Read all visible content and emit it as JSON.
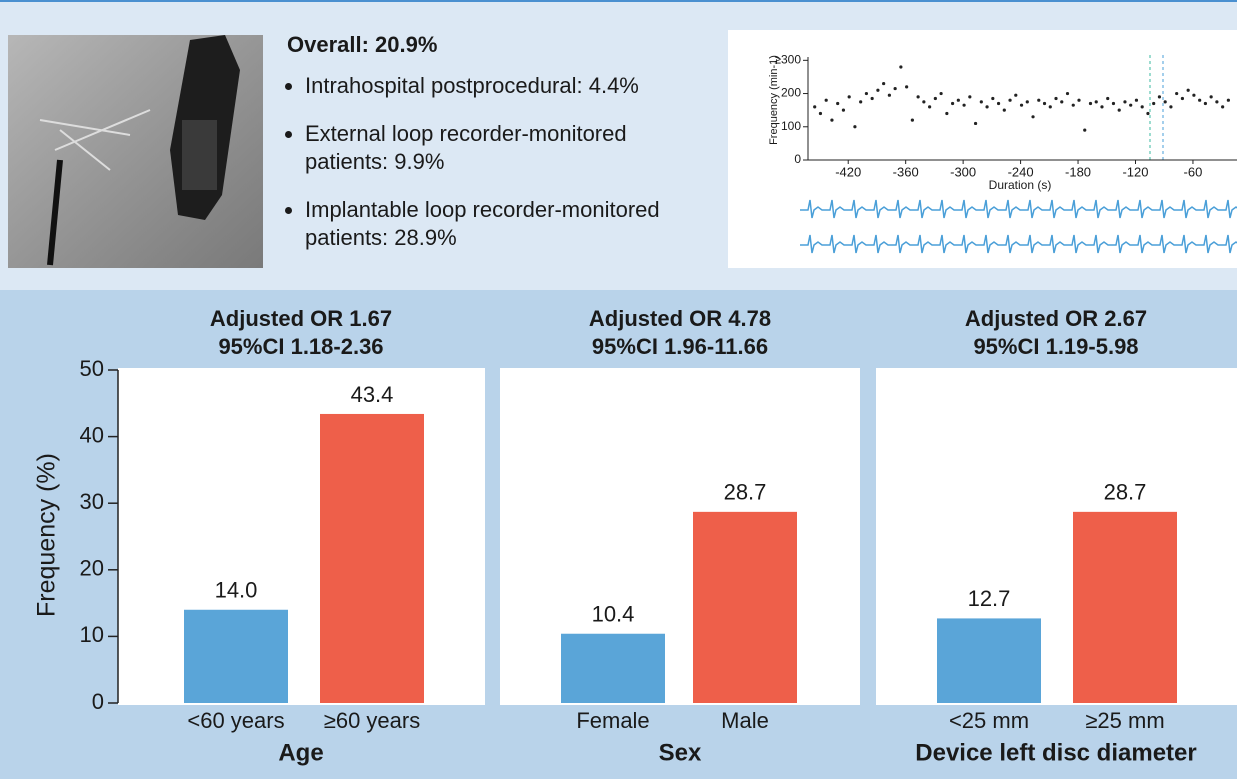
{
  "summary": {
    "overall": "Overall: 20.9%",
    "bullets": [
      [
        "Intrahospital postprocedural: 4.4%"
      ],
      [
        "External loop recorder-monitored",
        "patients: 9.9%"
      ],
      [
        "Implantable loop recorder-monitored",
        "patients: 28.9%"
      ]
    ]
  },
  "chart_data": [
    {
      "type": "scatter",
      "x_label": "Duration (s)",
      "y_label": "Frequency (min-1)",
      "color": "#222222",
      "xlim": [
        -462,
        -14
      ],
      "ylim": [
        0,
        310
      ],
      "xticks": [
        -420,
        -360,
        -300,
        -240,
        -180,
        -120,
        -60
      ],
      "yticks": [
        0,
        100,
        200,
        {
          "value": 300,
          "label": "≥300"
        }
      ],
      "x": [
        -455,
        -449,
        -443,
        -437,
        -431,
        -425,
        -419,
        -413,
        -407,
        -401,
        -395,
        -389,
        -383,
        -377,
        -371,
        -365,
        -359,
        -353,
        -347,
        -341,
        -335,
        -329,
        -323,
        -317,
        -311,
        -305,
        -299,
        -293,
        -287,
        -281,
        -275,
        -269,
        -263,
        -257,
        -251,
        -245,
        -239,
        -233,
        -227,
        -221,
        -215,
        -209,
        -203,
        -197,
        -191,
        -185,
        -179,
        -173,
        -167,
        -161,
        -155,
        -149,
        -143,
        -137,
        -131,
        -125,
        -119,
        -113,
        -107,
        -101,
        -95,
        -89,
        -83,
        -77,
        -71,
        -65,
        -59,
        -53,
        -47,
        -41,
        -35,
        -29,
        -23
      ],
      "y": [
        160,
        140,
        180,
        120,
        170,
        150,
        190,
        100,
        175,
        200,
        185,
        210,
        230,
        195,
        215,
        280,
        220,
        120,
        190,
        175,
        160,
        185,
        200,
        140,
        170,
        180,
        165,
        190,
        110,
        175,
        160,
        185,
        170,
        150,
        180,
        195,
        165,
        175,
        130,
        180,
        170,
        160,
        185,
        175,
        200,
        165,
        180,
        90,
        170,
        175,
        160,
        185,
        170,
        150,
        175,
        165,
        180,
        160,
        140,
        170,
        190,
        175,
        160,
        200,
        185,
        210,
        195,
        180,
        170,
        190,
        175,
        160,
        180
      ]
    },
    {
      "type": "bar",
      "y_label": "Frequency (%)",
      "ylim": [
        0,
        50
      ],
      "yticks": [
        0,
        10,
        20,
        30,
        40,
        50
      ],
      "colors": [
        "#5aa5d8",
        "#ee5f4a"
      ],
      "panels": [
        {
          "title": [
            "Adjusted OR 1.67",
            "95%CI 1.18-2.36"
          ],
          "group": "Age",
          "categories": [
            "<60 years",
            "≥60 years"
          ],
          "values": [
            14.0,
            43.4
          ],
          "value_labels": [
            "14.0",
            "43.4"
          ]
        },
        {
          "title": [
            "Adjusted OR 4.78",
            "95%CI 1.96-11.66"
          ],
          "group": "Sex",
          "categories": [
            "Female",
            "Male"
          ],
          "values": [
            10.4,
            28.7
          ],
          "value_labels": [
            "10.4",
            "28.7"
          ]
        },
        {
          "title": [
            "Adjusted OR 2.67",
            "95%CI 1.19-5.98"
          ],
          "group": "Device left disc diameter",
          "categories": [
            "<25 mm",
            "≥25 mm"
          ],
          "values": [
            12.7,
            28.7
          ],
          "value_labels": [
            "12.7",
            "28.7"
          ]
        }
      ]
    }
  ]
}
